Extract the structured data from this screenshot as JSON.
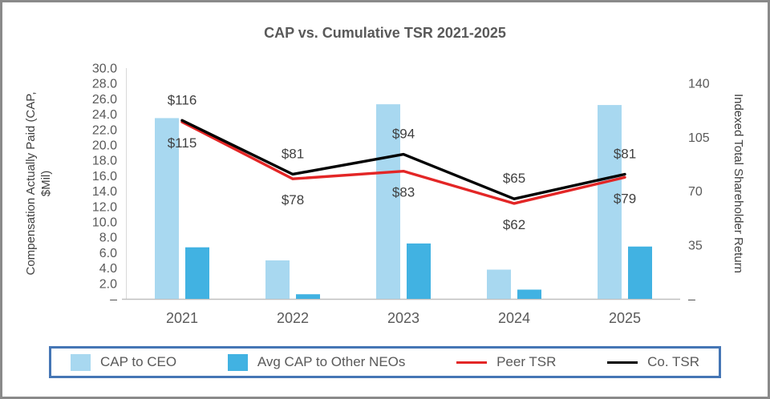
{
  "chart_data": {
    "type": "combo_bar_line",
    "title": "CAP vs. Cumulative TSR 2021-2025",
    "categories": [
      "2021",
      "2022",
      "2023",
      "2024",
      "2025"
    ],
    "bar_series": [
      {
        "name": "CAP to CEO",
        "color": "#a8d8f0",
        "axis": "left",
        "values": [
          23.5,
          5.0,
          25.3,
          3.8,
          25.2
        ]
      },
      {
        "name": "Avg CAP to Other NEOs",
        "color": "#41b2e2",
        "axis": "left",
        "values": [
          6.7,
          0.6,
          7.2,
          1.2,
          6.8
        ]
      }
    ],
    "line_series": [
      {
        "name": "Peer TSR",
        "color": "#e32626",
        "axis": "right",
        "values": [
          115,
          78,
          83,
          62,
          79
        ],
        "label_prefix": "$",
        "label_position": "below"
      },
      {
        "name": "Co. TSR",
        "color": "#000000",
        "axis": "right",
        "values": [
          116,
          81,
          94,
          65,
          81
        ],
        "label_prefix": "$",
        "label_position": "above"
      }
    ],
    "left_axis": {
      "label_lines": [
        "Compensation Actually Paid (CAP,",
        "$Mil)"
      ],
      "min": 0,
      "max": 30,
      "tick_step": 2,
      "tick_decimals": 1,
      "zero_tick_label": "–"
    },
    "right_axis": {
      "label": "Indexed Total Shareholder Return",
      "min": 0,
      "max": 150,
      "ticks": [
        140,
        105,
        70,
        35
      ],
      "zero_tick_label": "–"
    },
    "legend": [
      "CAP to CEO",
      "Avg CAP to Other NEOs",
      "Peer TSR",
      "Co. TSR"
    ],
    "grid": "off",
    "legend_position": "bottom"
  }
}
